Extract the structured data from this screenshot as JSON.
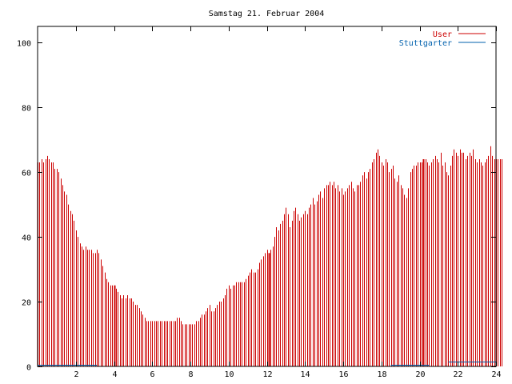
{
  "chart_data": {
    "type": "bar",
    "title": "Samstag 21. Februar 2004",
    "xlabel": "",
    "ylabel": "",
    "xlim": [
      0,
      24
    ],
    "ylim": [
      0,
      105
    ],
    "xticks": [
      "2",
      "4",
      "6",
      "8",
      "10",
      "12",
      "14",
      "16",
      "18",
      "20",
      "22",
      "24"
    ],
    "yticks": [
      "0",
      "20",
      "40",
      "60",
      "80",
      "100"
    ],
    "grid": false,
    "legend_position": "top-right",
    "colors": {
      "user": "#cc0000",
      "stuttgarter": "#0060ad",
      "frame": "#000000"
    },
    "series": [
      {
        "name": "User",
        "step_hours": 0.1,
        "values": [
          63,
          63,
          64,
          63,
          64,
          65,
          64,
          63,
          63,
          61,
          61,
          60,
          58,
          56,
          54,
          53,
          50,
          48,
          47,
          45,
          42,
          40,
          38,
          37,
          36,
          37,
          36,
          36,
          36,
          35,
          35,
          36,
          35,
          33,
          31,
          29,
          27,
          26,
          25,
          25,
          25,
          24,
          23,
          22,
          21,
          22,
          21,
          22,
          21,
          21,
          20,
          19,
          19,
          18,
          17,
          16,
          15,
          14,
          14,
          14,
          14,
          14,
          14,
          14,
          14,
          14,
          14,
          14,
          14,
          14,
          14,
          14,
          14,
          15,
          15,
          14,
          13,
          13,
          13,
          13,
          13,
          13,
          13,
          14,
          14,
          15,
          16,
          16,
          17,
          18,
          19,
          17,
          17,
          18,
          19,
          20,
          20,
          21,
          22,
          24,
          25,
          24,
          25,
          25,
          26,
          26,
          26,
          26,
          26,
          27,
          28,
          29,
          30,
          29,
          29,
          30,
          32,
          33,
          34,
          35,
          36,
          35,
          36,
          37,
          40,
          43,
          42,
          44,
          45,
          47,
          49,
          47,
          43,
          45,
          48,
          49,
          47,
          45,
          46,
          47,
          48,
          47,
          49,
          50,
          52,
          50,
          51,
          53,
          54,
          52,
          55,
          56,
          56,
          57,
          56,
          57,
          55,
          56,
          54,
          55,
          53,
          54,
          55,
          56,
          57,
          55,
          54,
          56,
          56,
          57,
          59,
          60,
          58,
          60,
          61,
          63,
          64,
          66,
          67,
          65,
          63,
          62,
          64,
          63,
          60,
          61,
          62,
          58,
          57,
          59,
          56,
          55,
          53,
          52,
          55,
          60,
          61,
          62,
          62,
          63,
          63,
          63,
          64,
          64,
          63,
          62,
          63,
          64,
          65,
          64,
          63,
          66,
          62,
          63,
          60,
          59,
          62,
          65,
          67,
          66,
          65,
          67,
          66,
          66,
          64,
          65,
          66,
          65,
          67,
          64,
          63,
          64,
          63,
          62,
          63,
          64,
          65,
          68,
          65,
          64,
          64,
          64,
          64,
          64
        ]
      },
      {
        "name": "Stuttgarter",
        "segments": [
          {
            "from": 0,
            "to": 3.1,
            "value": 0.5
          },
          {
            "from": 18.5,
            "to": 20.5,
            "value": 0.5
          },
          {
            "from": 21.5,
            "to": 24,
            "value": 1.5
          }
        ]
      }
    ],
    "highlight_bars_hours": [
      4.0,
      12.1,
      20.2
    ]
  }
}
